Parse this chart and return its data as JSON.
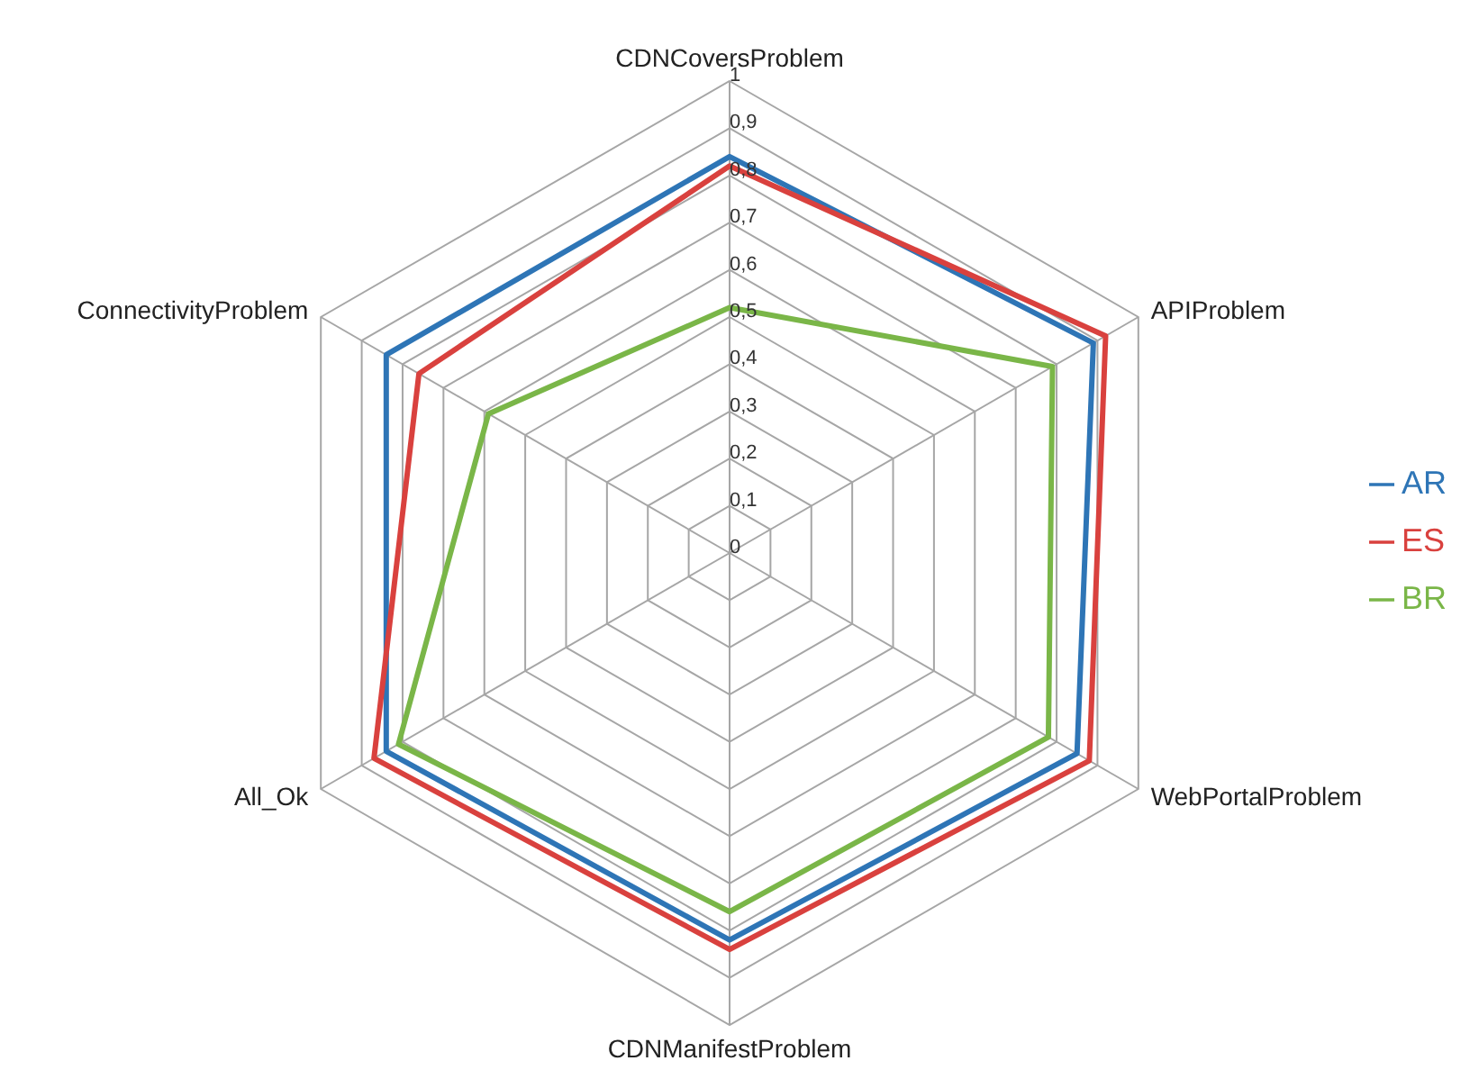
{
  "chart_data": {
    "type": "radar",
    "categories": [
      "CDNCoversProblem",
      "APIProblem",
      "WebPortalProblem",
      "CDNManifestProblem",
      "All_Ok",
      "ConnectivityProblem"
    ],
    "series": [
      {
        "name": "AR",
        "color": "#2e75b6",
        "values": [
          0.84,
          0.89,
          0.85,
          0.82,
          0.84,
          0.84
        ]
      },
      {
        "name": "ES",
        "color": "#d9413e",
        "values": [
          0.82,
          0.92,
          0.88,
          0.84,
          0.87,
          0.76
        ]
      },
      {
        "name": "BR",
        "color": "#7ab648",
        "values": [
          0.52,
          0.79,
          0.78,
          0.76,
          0.81,
          0.59
        ]
      }
    ],
    "ylim": [
      0,
      1
    ],
    "yticks": [
      0,
      {
        "value": 0.1,
        "label": "0,1"
      },
      {
        "value": 0.2,
        "label": "0,2"
      },
      {
        "value": 0.3,
        "label": "0,3"
      },
      {
        "value": 0.4,
        "label": "0,4"
      },
      {
        "value": 0.5,
        "label": "0,5"
      },
      {
        "value": 0.6,
        "label": "0,6"
      },
      {
        "value": 0.7,
        "label": "0,7"
      },
      {
        "value": 0.8,
        "label": "0,8"
      },
      {
        "value": 0.9,
        "label": "0,9"
      },
      1
    ],
    "grid": true,
    "legend": "right",
    "marker": "none"
  }
}
